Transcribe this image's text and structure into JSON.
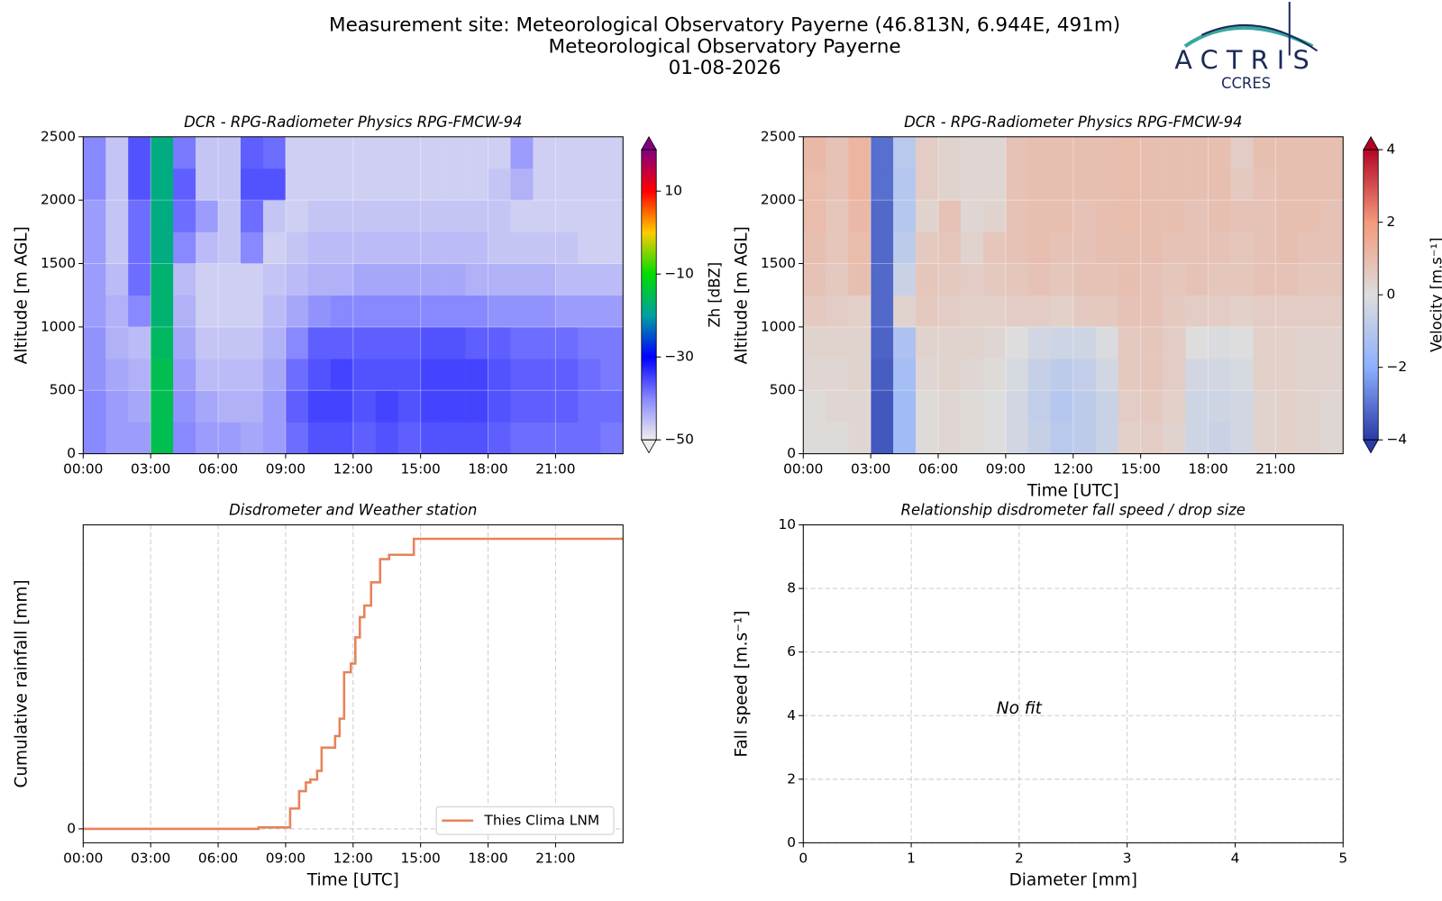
{
  "header": {
    "lines": [
      "Measurement site: Meteorological Observatory Payerne (46.813N, 6.944E, 491m)",
      "Meteorological Observatory Payerne",
      "01-08-2026"
    ],
    "logo": "ACTRIS",
    "logo_sub": "CCRES"
  },
  "chart_data": [
    {
      "type": "heatmap",
      "title": "DCR - RPG-Radiometer Physics RPG-FMCW-94",
      "ylabel": "Altitude [m AGL]",
      "xlim": [
        0,
        24
      ],
      "xticks": [
        {
          "value": 0,
          "label": "00:00"
        },
        {
          "value": 3,
          "label": "03:00"
        },
        {
          "value": 6,
          "label": "06:00"
        },
        {
          "value": 9,
          "label": "09:00"
        },
        {
          "value": 12,
          "label": "12:00"
        },
        {
          "value": 15,
          "label": "15:00"
        },
        {
          "value": 18,
          "label": "18:00"
        },
        {
          "value": 21,
          "label": "21:00"
        }
      ],
      "ylim": [
        0,
        2500
      ],
      "yticks": [
        0,
        500,
        1000,
        1500,
        2000,
        2500
      ],
      "grid": true,
      "x_edges": [
        0,
        1,
        2,
        3,
        4,
        5,
        6,
        7,
        8,
        9,
        10,
        11,
        12,
        13,
        14,
        15,
        16,
        17,
        18,
        19,
        20,
        21,
        22,
        23,
        24
      ],
      "y_edges": [
        0,
        250,
        500,
        750,
        1000,
        1250,
        1500,
        1750,
        2000,
        2250,
        2500
      ],
      "z": [
        [
          -40,
          -42,
          -42,
          -15,
          -40,
          -42,
          -42,
          -43,
          -42,
          -38,
          -36,
          -36,
          -37,
          -36,
          -37,
          -36,
          -36,
          -36,
          -37,
          -38,
          -38,
          -38,
          -38,
          -39
        ],
        [
          -40,
          -42,
          -43,
          -15,
          -41,
          -43,
          -44,
          -44,
          -42,
          -37,
          -35,
          -35,
          -36,
          -35,
          -36,
          -35,
          -35,
          -35,
          -36,
          -37,
          -37,
          -37,
          -38,
          -38
        ],
        [
          -41,
          -43,
          -44,
          -15,
          -42,
          -45,
          -45,
          -45,
          -43,
          -38,
          -36,
          -35,
          -36,
          -36,
          -36,
          -35,
          -35,
          -35,
          -36,
          -37,
          -37,
          -37,
          -38,
          -39
        ],
        [
          -41,
          -44,
          -45,
          -16,
          -43,
          -46,
          -46,
          -46,
          -44,
          -40,
          -37,
          -37,
          -37,
          -37,
          -37,
          -36,
          -36,
          -37,
          -37,
          -38,
          -38,
          -38,
          -39,
          -39
        ],
        [
          -42,
          -44,
          -40,
          -17,
          -44,
          -47,
          -47,
          -47,
          -45,
          -43,
          -41,
          -40,
          -40,
          -40,
          -40,
          -40,
          -40,
          -40,
          -41,
          -41,
          -41,
          -42,
          -42,
          -42
        ],
        [
          -42,
          -45,
          -38,
          -17,
          -45,
          -47,
          -47,
          -47,
          -46,
          -45,
          -44,
          -44,
          -43,
          -43,
          -43,
          -43,
          -43,
          -44,
          -44,
          -44,
          -44,
          -45,
          -45,
          -45
        ],
        [
          -42,
          -46,
          -38,
          -18,
          -40,
          -45,
          -46,
          -40,
          -47,
          -46,
          -45,
          -45,
          -45,
          -45,
          -45,
          -45,
          -45,
          -45,
          -46,
          -46,
          -46,
          -46,
          -47,
          -47
        ],
        [
          -42,
          -46,
          -38,
          -18,
          -38,
          -42,
          -46,
          -38,
          -46,
          -47,
          -46,
          -46,
          -46,
          -46,
          -46,
          -46,
          -46,
          -46,
          -46,
          -47,
          -47,
          -47,
          -47,
          -47
        ],
        [
          -40,
          -46,
          -36,
          -18,
          -37,
          -46,
          -46,
          -36,
          -36,
          -47,
          -47,
          -47,
          -47,
          -47,
          -47,
          -47,
          -47,
          -47,
          -46,
          -44,
          -47,
          -47,
          -47,
          -47
        ],
        [
          -40,
          -46,
          -36,
          -18,
          -39,
          -46,
          -46,
          -37,
          -38,
          -47,
          -47,
          -47,
          -47,
          -47,
          -47,
          -47,
          -47,
          -47,
          -47,
          -42,
          -47,
          -47,
          -47,
          -47
        ]
      ],
      "colorbar": {
        "label": "Zh [dBZ]",
        "lim": [
          -50,
          20
        ],
        "extend": "both",
        "ticks": [
          10,
          {
            "value": -10,
            "label": "−10"
          },
          {
            "value": -30,
            "label": "−30"
          },
          {
            "value": -50,
            "label": "−50"
          }
        ],
        "colormap": [
          "#eeeeee",
          "#8888ff",
          "#0000ff",
          "#00a0a0",
          "#00dd00",
          "#ffcc00",
          "#ff0000",
          "#800080"
        ]
      }
    },
    {
      "type": "heatmap",
      "title": "DCR - RPG-Radiometer Physics RPG-FMCW-94",
      "ylabel": "Altitude [m AGL]",
      "xlabel": "Time [UTC]",
      "xlim": [
        0,
        24
      ],
      "xticks": [
        {
          "value": 0,
          "label": "00:00"
        },
        {
          "value": 3,
          "label": "03:00"
        },
        {
          "value": 6,
          "label": "06:00"
        },
        {
          "value": 9,
          "label": "09:00"
        },
        {
          "value": 12,
          "label": "12:00"
        },
        {
          "value": 15,
          "label": "15:00"
        },
        {
          "value": 18,
          "label": "18:00"
        },
        {
          "value": 21,
          "label": "21:00"
        }
      ],
      "ylim": [
        0,
        2500
      ],
      "yticks": [
        0,
        500,
        1000,
        1500,
        2000,
        2500
      ],
      "grid": true,
      "x_edges": [
        0,
        1,
        2,
        3,
        4,
        5,
        6,
        7,
        8,
        9,
        10,
        11,
        12,
        13,
        14,
        15,
        16,
        17,
        18,
        19,
        20,
        21,
        22,
        23,
        24
      ],
      "y_edges": [
        0,
        250,
        500,
        750,
        1000,
        1250,
        1500,
        1750,
        2000,
        2250,
        2500
      ],
      "z": [
        [
          0.1,
          0.1,
          0.2,
          -3.5,
          -1.5,
          0.1,
          0.2,
          0.1,
          0,
          -0.3,
          -0.6,
          -0.9,
          -0.8,
          -0.5,
          0.4,
          0.5,
          0.3,
          -0.4,
          -0.5,
          -0.3,
          0.3,
          0.4,
          0.3,
          0.2
        ],
        [
          0.1,
          0.2,
          0.2,
          -3.5,
          -1.5,
          0.1,
          0.2,
          0.1,
          0,
          -0.3,
          -0.7,
          -1.0,
          -0.8,
          -0.5,
          0.5,
          0.6,
          0.4,
          -0.4,
          -0.4,
          -0.3,
          0.3,
          0.4,
          0.3,
          0.2
        ],
        [
          0.2,
          0.2,
          0.3,
          -3.4,
          -1.4,
          0.2,
          0.3,
          0.2,
          0.1,
          -0.2,
          -0.6,
          -0.8,
          -0.7,
          -0.3,
          0.6,
          0.7,
          0.5,
          -0.3,
          -0.3,
          -0.2,
          0.4,
          0.4,
          0.3,
          0.3
        ],
        [
          0.3,
          0.3,
          0.3,
          -3.3,
          -1.2,
          0.3,
          0.3,
          0.3,
          0.2,
          0,
          -0.3,
          -0.4,
          -0.4,
          -0.1,
          0.6,
          0.7,
          0.5,
          0,
          -0.1,
          0,
          0.4,
          0.4,
          0.3,
          0.3
        ],
        [
          0.6,
          0.5,
          0.4,
          -3.2,
          0.3,
          0.6,
          0.5,
          0.4,
          0.4,
          0.5,
          0.5,
          0.4,
          0.6,
          0.6,
          0.8,
          0.8,
          0.6,
          0.5,
          0.5,
          0.4,
          0.5,
          0.5,
          0.5,
          0.5
        ],
        [
          0.8,
          0.6,
          0.9,
          -3.2,
          -0.5,
          0.7,
          0.6,
          0.5,
          0.6,
          0.7,
          0.8,
          0.7,
          0.8,
          0.8,
          0.9,
          0.8,
          0.7,
          0.8,
          0.7,
          0.7,
          0.8,
          0.8,
          0.7,
          0.7
        ],
        [
          0.9,
          0.7,
          1.0,
          -3.2,
          -0.8,
          0.6,
          0.7,
          0.3,
          0.7,
          0.8,
          0.9,
          0.8,
          0.8,
          0.9,
          0.9,
          0.9,
          0.8,
          0.8,
          0.8,
          0.7,
          0.8,
          0.9,
          0.8,
          0.8
        ],
        [
          1.0,
          0.7,
          1.1,
          -3.2,
          -1.0,
          0.3,
          0.8,
          0.2,
          0.3,
          0.8,
          0.9,
          0.9,
          0.8,
          0.9,
          1.0,
          0.9,
          0.9,
          0.8,
          0.9,
          0.8,
          0.8,
          0.9,
          0.9,
          0.8
        ],
        [
          1.0,
          0.8,
          1.2,
          -3.1,
          -1.0,
          0.5,
          0.3,
          0.2,
          0.2,
          0.8,
          0.9,
          0.9,
          0.9,
          0.9,
          1.0,
          0.9,
          0.9,
          0.9,
          0.9,
          0.6,
          0.8,
          0.9,
          0.9,
          0.9
        ],
        [
          1.1,
          0.8,
          1.2,
          -3.1,
          -0.9,
          0.5,
          0.3,
          0.2,
          0.2,
          0.8,
          0.9,
          0.9,
          0.9,
          0.9,
          1.0,
          0.9,
          0.9,
          0.9,
          0.9,
          0.5,
          0.9,
          0.9,
          0.9,
          0.9
        ]
      ],
      "colorbar": {
        "label": "Velocity [m.s⁻¹]",
        "lim": [
          -4,
          4
        ],
        "extend": "both",
        "ticks": [
          4,
          2,
          0,
          {
            "value": -2,
            "label": "−2"
          },
          {
            "value": -4,
            "label": "−4"
          }
        ],
        "colormap": [
          "#2a3aa8",
          "#8db0fe",
          "#dddddd",
          "#f49a7b",
          "#b40426"
        ]
      }
    },
    {
      "type": "line",
      "title": "Disdrometer and Weather station",
      "ylabel": "Cumulative rainfall [mm]",
      "xlabel": "Time [UTC]",
      "xlim": [
        0,
        24
      ],
      "xticks": [
        {
          "value": 0,
          "label": "00:00"
        },
        {
          "value": 3,
          "label": "03:00"
        },
        {
          "value": 6,
          "label": "06:00"
        },
        {
          "value": 9,
          "label": "09:00"
        },
        {
          "value": 12,
          "label": "12:00"
        },
        {
          "value": 15,
          "label": "15:00"
        },
        {
          "value": 18,
          "label": "18:00"
        },
        {
          "value": 21,
          "label": "21:00"
        }
      ],
      "ylim": [
        -0.48,
        10.48
      ],
      "yticks": [
        0
      ],
      "grid": true,
      "legend": "lower right",
      "x": [
        0,
        7.8,
        7.8,
        9.2,
        9.2,
        9.6,
        9.6,
        9.9,
        9.9,
        10.1,
        10.1,
        10.4,
        10.4,
        10.6,
        10.6,
        11.2,
        11.2,
        11.4,
        11.4,
        11.6,
        11.6,
        11.9,
        11.9,
        12.1,
        12.1,
        12.3,
        12.3,
        12.5,
        12.5,
        12.8,
        12.8,
        13.2,
        13.2,
        13.6,
        13.6,
        14.7,
        14.7,
        24
      ],
      "series": [
        {
          "name": "Thies Clima LNM",
          "color": "#e8825a",
          "values": [
            0,
            0,
            0.05,
            0.05,
            0.7,
            0.7,
            1.3,
            1.3,
            1.6,
            1.6,
            1.7,
            1.7,
            2.0,
            2.0,
            2.8,
            2.8,
            3.2,
            3.2,
            3.8,
            3.8,
            5.4,
            5.4,
            5.7,
            5.7,
            6.6,
            6.6,
            7.3,
            7.3,
            7.7,
            7.7,
            8.5,
            8.5,
            9.3,
            9.3,
            9.45,
            9.45,
            10,
            10
          ]
        }
      ]
    },
    {
      "type": "scatter",
      "title": "Relationship disdrometer fall speed / drop size",
      "ylabel": "Fall speed [m.s⁻¹]",
      "xlabel": "Diameter [mm]",
      "xlim": [
        0,
        5
      ],
      "xticks": [
        0,
        1,
        2,
        3,
        4,
        5
      ],
      "ylim": [
        0,
        10
      ],
      "yticks": [
        0,
        2,
        4,
        6,
        8,
        10
      ],
      "grid": true,
      "annotation": "No fit"
    }
  ]
}
